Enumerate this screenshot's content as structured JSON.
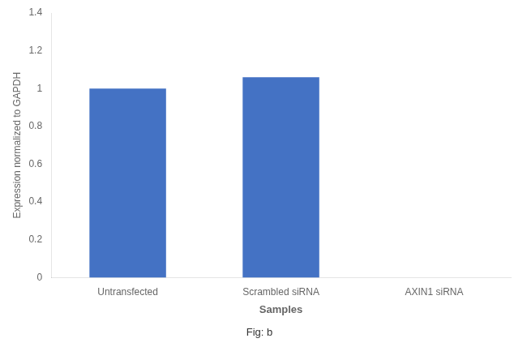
{
  "chart_data": {
    "type": "bar",
    "categories": [
      "Untransfected",
      "Scrambled siRNA",
      "AXIN1 siRNA"
    ],
    "values": [
      1.0,
      1.06,
      0.0
    ],
    "color": "#4472c4",
    "ylim": [
      0,
      1.4
    ],
    "yticks": [
      0,
      0.2,
      0.4,
      0.6,
      0.8,
      1,
      1.2,
      1.4
    ],
    "xlabel": "Samples",
    "ylabel": "Expression normalized to GAPDH",
    "subtitle": "Fig: b",
    "grid": false
  }
}
